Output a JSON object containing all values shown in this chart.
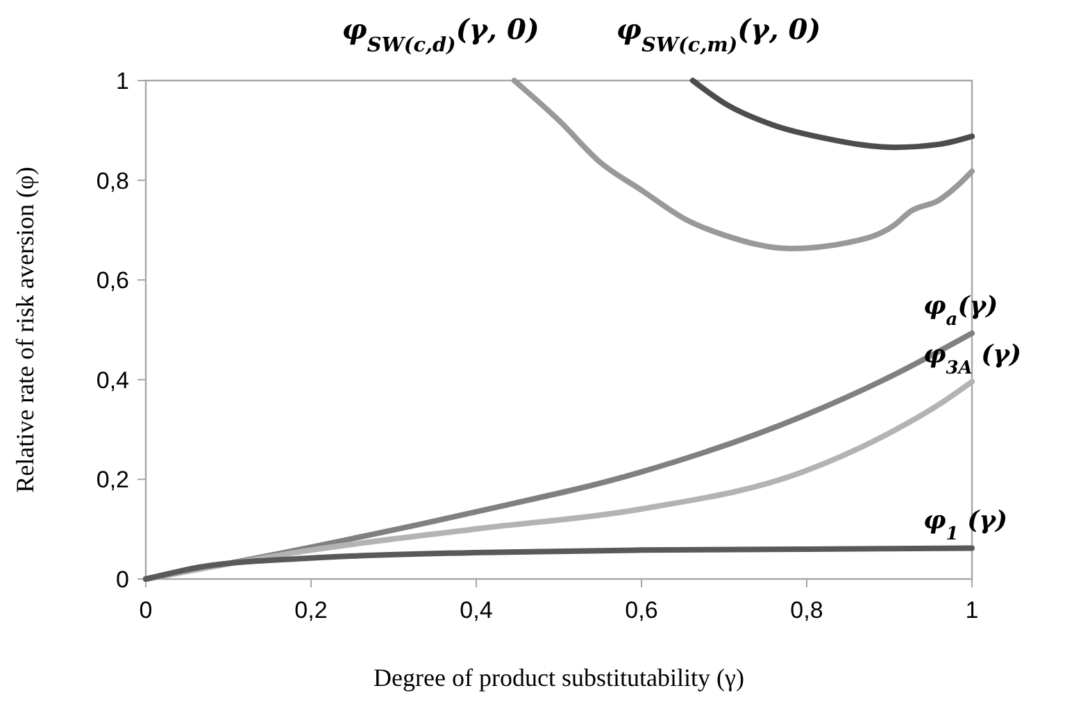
{
  "chart_data": {
    "type": "line",
    "xlabel": "Degree of product substitutability (γ)",
    "ylabel": "Relative rate of risk aversion (φ)",
    "xlim": [
      0,
      1
    ],
    "ylim": [
      0,
      1
    ],
    "xticks": [
      0,
      {
        "value": 0.2,
        "label": "0,2"
      },
      {
        "value": 0.4,
        "label": "0,4"
      },
      {
        "value": 0.6,
        "label": "0,6"
      },
      {
        "value": 0.8,
        "label": "0,8"
      },
      1
    ],
    "yticks": [
      0,
      {
        "value": 0.2,
        "label": "0,2"
      },
      {
        "value": 0.4,
        "label": "0,4"
      },
      {
        "value": 0.6,
        "label": "0,6"
      },
      {
        "value": 0.8,
        "label": "0,8"
      },
      1
    ],
    "grid": false,
    "marker": "none",
    "line_style": "solid",
    "series": [
      {
        "name": "φ$_{SW(c,d)}$(γ, 0)",
        "color": "#999999",
        "x": [
          0.446,
          0.5,
          0.55,
          0.6,
          0.655,
          0.7,
          0.78,
          0.85,
          0.906,
          0.926,
          0.96,
          0.983,
          1
        ],
        "values": [
          1,
          0.92,
          0.836,
          0.78,
          0.72,
          0.69,
          0.663,
          0.675,
          0.71,
          0.738,
          0.76,
          0.79,
          0.818
        ]
      },
      {
        "name": "φ$_{SW(c,m)}$(γ, 0)",
        "color": "#4d4d4d",
        "x": [
          0.662,
          0.7,
          0.759,
          0.82,
          0.906,
          0.96,
          1
        ],
        "values": [
          1,
          0.955,
          0.911,
          0.885,
          0.866,
          0.872,
          0.888
        ]
      },
      {
        "name": "φ$_{a}$(γ)",
        "color": "#808080",
        "x": [
          0,
          0.2,
          0.397,
          0.598,
          0.794,
          0.9,
          1
        ],
        "values": [
          0,
          0.064,
          0.134,
          0.214,
          0.326,
          0.405,
          0.493
        ]
      },
      {
        "name": "φ$_{3A}$ (γ)",
        "color": "#b3b3b3",
        "x": [
          0,
          0.2,
          0.397,
          0.598,
          0.794,
          0.906,
          0.96,
          1
        ],
        "values": [
          0,
          0.058,
          0.1,
          0.14,
          0.214,
          0.298,
          0.35,
          0.396
        ]
      },
      {
        "name": "φ$_{1}$ (γ)",
        "color": "#595959",
        "x": [
          0,
          0.07,
          0.2,
          0.397,
          0.598,
          0.8,
          1
        ],
        "values": [
          0,
          0.025,
          0.042,
          0.053,
          0.058,
          0.06,
          0.062
        ]
      }
    ]
  }
}
